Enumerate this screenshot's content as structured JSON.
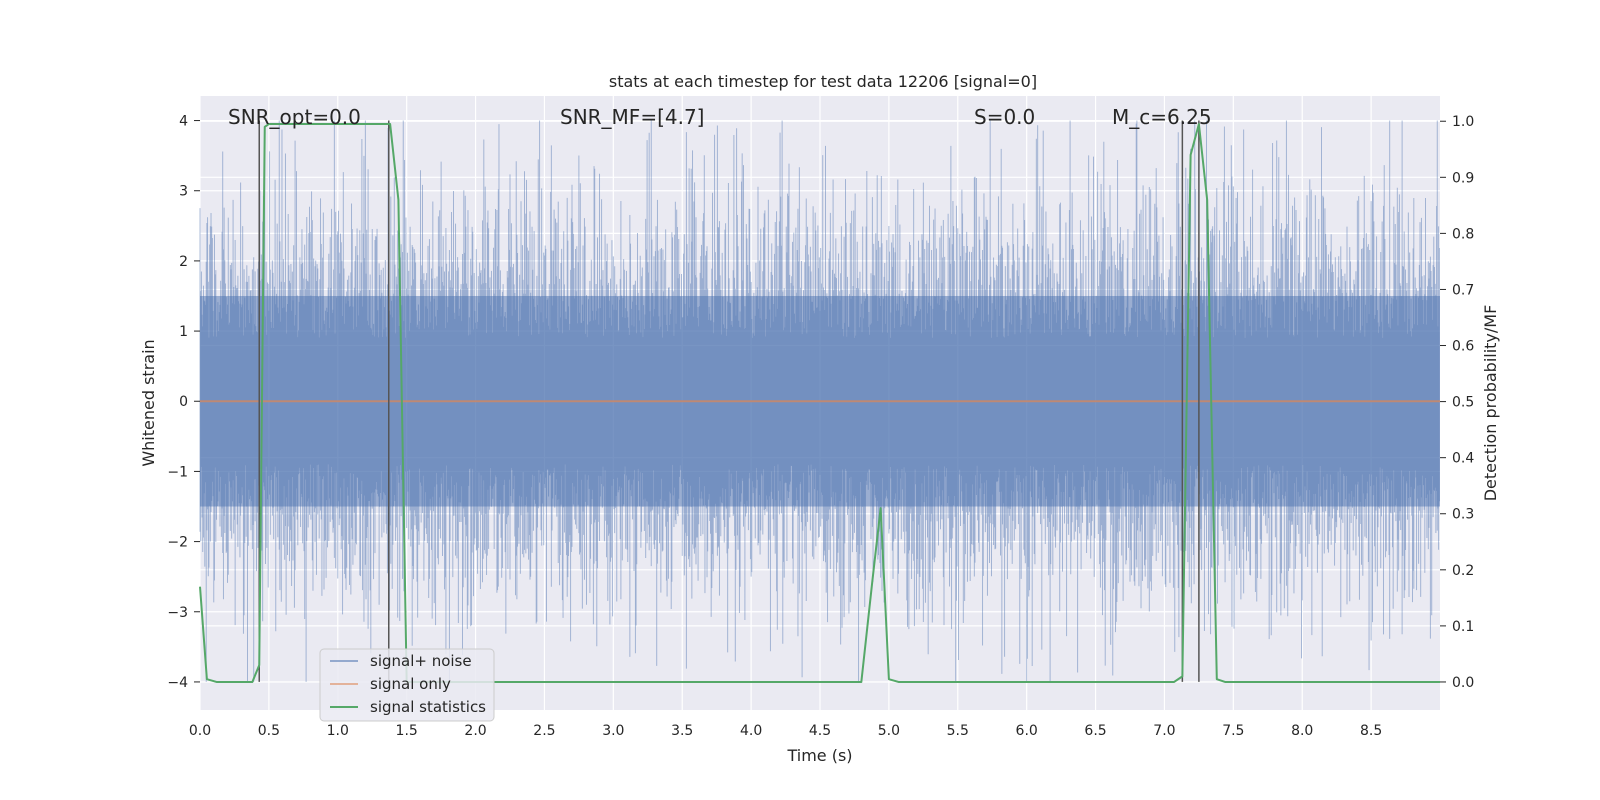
{
  "chart_data": {
    "type": "line",
    "title": "stats at each timestep for test data 12206 [signal=0]",
    "xlabel": "Time (s)",
    "ylabel_left": "Whitened strain",
    "ylabel_right": "Detection probability/MF",
    "xlim": [
      0.0,
      9.0
    ],
    "ylim_left": [
      -4.4,
      4.35
    ],
    "ylim_right": [
      -0.05,
      1.045
    ],
    "x_ticks": [
      "0.0",
      "0.5",
      "1.0",
      "1.5",
      "2.0",
      "2.5",
      "3.0",
      "3.5",
      "4.0",
      "4.5",
      "5.0",
      "5.5",
      "6.0",
      "6.5",
      "7.0",
      "7.5",
      "8.0",
      "8.5"
    ],
    "y_ticks_left": [
      "−4",
      "−3",
      "−2",
      "−1",
      "0",
      "1",
      "2",
      "3",
      "4"
    ],
    "y_ticks_right": [
      "0.0",
      "0.1",
      "0.2",
      "0.3",
      "0.4",
      "0.5",
      "0.6",
      "0.7",
      "0.8",
      "0.9",
      "1.0"
    ],
    "grid": true,
    "legend_position": "lower-left",
    "annotations": [
      {
        "text": "SNR_opt=0.0",
        "x": 0.2,
        "y": 3.95
      },
      {
        "text": "SNR_MF=[4.7]",
        "x": 2.6,
        "y": 3.95
      },
      {
        "text": "S=0.0",
        "x": 5.6,
        "y": 3.95
      },
      {
        "text": "M_c=6.25",
        "x": 6.6,
        "y": 3.95
      }
    ],
    "vertical_lines_x": [
      0.43,
      1.37,
      7.13,
      7.25
    ],
    "series": [
      {
        "name": "signal+ noise",
        "color": "#4c72b0",
        "axis": "left",
        "style": "dense-noise",
        "envelope_typical": 1.5,
        "envelope_peak": 4.0
      },
      {
        "name": "signal only",
        "color": "#dd8452",
        "axis": "left",
        "x": [
          0.0,
          9.0
        ],
        "y": [
          0.0,
          0.0
        ]
      },
      {
        "name": "signal statistics",
        "color": "#55a868",
        "axis": "right",
        "x": [
          0.0,
          0.05,
          0.12,
          0.38,
          0.43,
          0.47,
          0.5,
          0.55,
          1.0,
          1.38,
          1.44,
          1.5,
          1.62,
          4.8,
          4.88,
          4.94,
          5.0,
          5.07,
          7.07,
          7.13,
          7.19,
          7.25,
          7.31,
          7.38,
          7.44,
          9.0
        ],
        "y": [
          0.17,
          0.005,
          0.0,
          0.0,
          0.03,
          0.99,
          0.995,
          0.995,
          0.995,
          0.995,
          0.86,
          0.0,
          0.0,
          0.0,
          0.18,
          0.31,
          0.005,
          0.0,
          0.0,
          0.01,
          0.94,
          0.995,
          0.86,
          0.005,
          0.0,
          0.0
        ]
      }
    ]
  }
}
